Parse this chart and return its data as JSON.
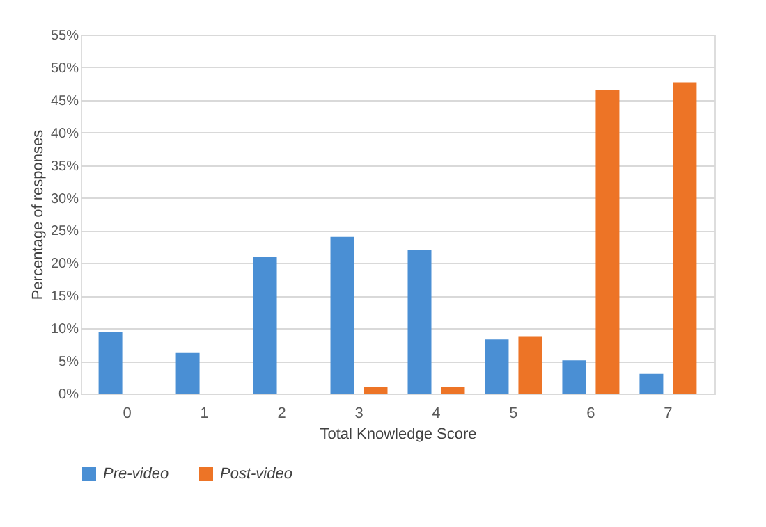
{
  "chart_data": {
    "type": "bar",
    "xlabel": "Total Knowledge Score",
    "ylabel": "Percentage of responses",
    "categories": [
      "0",
      "1",
      "2",
      "3",
      "4",
      "5",
      "6",
      "7"
    ],
    "series": [
      {
        "name": "Pre-video",
        "color": "#4a8fd4",
        "values": [
          9.4,
          6.2,
          21.0,
          24.0,
          22.0,
          8.3,
          5.1,
          3.0
        ]
      },
      {
        "name": "Post-video",
        "color": "#ed7426",
        "values": [
          0,
          0,
          0,
          1.0,
          1.0,
          8.8,
          46.5,
          47.7
        ]
      }
    ],
    "ylim": [
      0,
      55
    ],
    "yticks": [
      {
        "value": 0,
        "label": "0%"
      },
      {
        "value": 5,
        "label": "5%"
      },
      {
        "value": 10,
        "label": "10%"
      },
      {
        "value": 15,
        "label": "15%"
      },
      {
        "value": 20,
        "label": "20%"
      },
      {
        "value": 25,
        "label": "25%"
      },
      {
        "value": 30,
        "label": "30%"
      },
      {
        "value": 35,
        "label": "35%"
      },
      {
        "value": 40,
        "label": "40%"
      },
      {
        "value": 45,
        "label": "45%"
      },
      {
        "value": 50,
        "label": "50%"
      },
      {
        "value": 55,
        "label": "55%"
      }
    ],
    "grid": "y",
    "legend": "bottom"
  }
}
